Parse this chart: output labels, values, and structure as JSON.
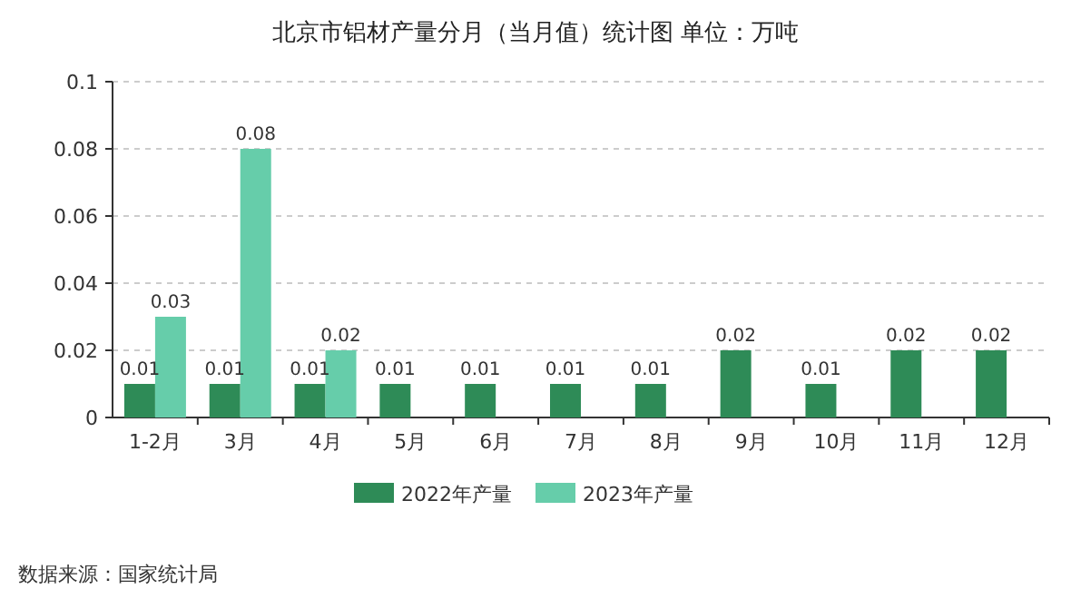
{
  "chart_data": {
    "type": "bar",
    "title": "北京市铝材产量分月（当月值）统计图 单位：万吨",
    "categories": [
      "1-2月",
      "3月",
      "4月",
      "5月",
      "6月",
      "7月",
      "8月",
      "9月",
      "10月",
      "11月",
      "12月"
    ],
    "series": [
      {
        "name": "2022年产量",
        "color": "#2e8b57",
        "values": [
          0.01,
          0.01,
          0.01,
          0.01,
          0.01,
          0.01,
          0.01,
          0.02,
          0.01,
          0.02,
          0.02
        ]
      },
      {
        "name": "2023年产量",
        "color": "#66cdaa",
        "values": [
          0.03,
          0.08,
          0.02,
          null,
          null,
          null,
          null,
          null,
          null,
          null,
          null
        ]
      }
    ],
    "ylim": [
      0,
      0.1
    ],
    "yticks": [
      0,
      0.02,
      0.04,
      0.06,
      0.08,
      0.1
    ],
    "grid": "y",
    "legend": "bottom",
    "data_labels": true,
    "annotations": [
      "数据来源：国家统计局"
    ]
  }
}
